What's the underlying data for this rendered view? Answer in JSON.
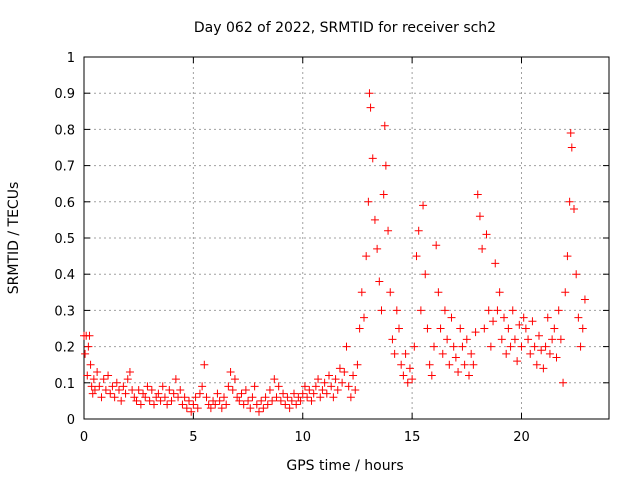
{
  "chart_data": {
    "type": "scatter",
    "title": "Day 062 of 2022, SRMTID for receiver sch2",
    "xlabel": "GPS time / hours",
    "ylabel": "SRMTID / TECUs",
    "xlim": [
      0,
      24
    ],
    "ylim": [
      0,
      1
    ],
    "xticks": [
      0,
      5,
      10,
      15,
      20
    ],
    "xtick_labels": [
      "0",
      "5",
      "10",
      "15",
      "20"
    ],
    "yticks": [
      0,
      0.1,
      0.2,
      0.3,
      0.4,
      0.5,
      0.6,
      0.7,
      0.8,
      0.9,
      1
    ],
    "ytick_labels": [
      "0",
      "0.1",
      "0.2",
      "0.3",
      "0.4",
      "0.5",
      "0.6",
      "0.7",
      "0.8",
      "0.9",
      "1"
    ],
    "grid": true,
    "marker": "+",
    "color": "#ff0000",
    "series": [
      {
        "name": "sch2 SRMTID",
        "points": [
          [
            0.0,
            0.23
          ],
          [
            0.05,
            0.18
          ],
          [
            0.1,
            0.23
          ],
          [
            0.15,
            0.12
          ],
          [
            0.2,
            0.2
          ],
          [
            0.25,
            0.23
          ],
          [
            0.3,
            0.15
          ],
          [
            0.35,
            0.09
          ],
          [
            0.4,
            0.07
          ],
          [
            0.45,
            0.11
          ],
          [
            0.5,
            0.08
          ],
          [
            0.6,
            0.13
          ],
          [
            0.7,
            0.09
          ],
          [
            0.8,
            0.06
          ],
          [
            0.9,
            0.11
          ],
          [
            1.0,
            0.08
          ],
          [
            1.1,
            0.12
          ],
          [
            1.2,
            0.07
          ],
          [
            1.3,
            0.09
          ],
          [
            1.4,
            0.06
          ],
          [
            1.5,
            0.1
          ],
          [
            1.6,
            0.08
          ],
          [
            1.7,
            0.05
          ],
          [
            1.8,
            0.09
          ],
          [
            1.9,
            0.07
          ],
          [
            2.0,
            0.11
          ],
          [
            2.1,
            0.13
          ],
          [
            2.2,
            0.08
          ],
          [
            2.3,
            0.06
          ],
          [
            2.4,
            0.05
          ],
          [
            2.5,
            0.08
          ],
          [
            2.6,
            0.04
          ],
          [
            2.7,
            0.07
          ],
          [
            2.8,
            0.06
          ],
          [
            2.9,
            0.09
          ],
          [
            3.0,
            0.05
          ],
          [
            3.1,
            0.08
          ],
          [
            3.2,
            0.04
          ],
          [
            3.3,
            0.06
          ],
          [
            3.4,
            0.07
          ],
          [
            3.5,
            0.05
          ],
          [
            3.6,
            0.09
          ],
          [
            3.7,
            0.06
          ],
          [
            3.8,
            0.04
          ],
          [
            3.9,
            0.08
          ],
          [
            4.0,
            0.05
          ],
          [
            4.1,
            0.07
          ],
          [
            4.2,
            0.11
          ],
          [
            4.3,
            0.06
          ],
          [
            4.4,
            0.08
          ],
          [
            4.5,
            0.04
          ],
          [
            4.6,
            0.06
          ],
          [
            4.7,
            0.03
          ],
          [
            4.8,
            0.05
          ],
          [
            4.9,
            0.02
          ],
          [
            5.0,
            0.04
          ],
          [
            5.1,
            0.06
          ],
          [
            5.2,
            0.03
          ],
          [
            5.3,
            0.07
          ],
          [
            5.4,
            0.09
          ],
          [
            5.5,
            0.15
          ],
          [
            5.6,
            0.06
          ],
          [
            5.7,
            0.04
          ],
          [
            5.8,
            0.03
          ],
          [
            5.9,
            0.05
          ],
          [
            6.0,
            0.04
          ],
          [
            6.1,
            0.07
          ],
          [
            6.2,
            0.05
          ],
          [
            6.3,
            0.03
          ],
          [
            6.4,
            0.06
          ],
          [
            6.5,
            0.04
          ],
          [
            6.6,
            0.09
          ],
          [
            6.7,
            0.13
          ],
          [
            6.8,
            0.08
          ],
          [
            6.9,
            0.11
          ],
          [
            7.0,
            0.06
          ],
          [
            7.1,
            0.05
          ],
          [
            7.2,
            0.07
          ],
          [
            7.3,
            0.04
          ],
          [
            7.4,
            0.08
          ],
          [
            7.5,
            0.05
          ],
          [
            7.6,
            0.03
          ],
          [
            7.7,
            0.06
          ],
          [
            7.8,
            0.09
          ],
          [
            7.9,
            0.04
          ],
          [
            8.0,
            0.02
          ],
          [
            8.1,
            0.05
          ],
          [
            8.2,
            0.03
          ],
          [
            8.3,
            0.06
          ],
          [
            8.4,
            0.04
          ],
          [
            8.5,
            0.08
          ],
          [
            8.6,
            0.05
          ],
          [
            8.7,
            0.11
          ],
          [
            8.8,
            0.06
          ],
          [
            8.9,
            0.09
          ],
          [
            9.0,
            0.05
          ],
          [
            9.1,
            0.07
          ],
          [
            9.2,
            0.04
          ],
          [
            9.3,
            0.06
          ],
          [
            9.4,
            0.03
          ],
          [
            9.5,
            0.05
          ],
          [
            9.6,
            0.07
          ],
          [
            9.7,
            0.04
          ],
          [
            9.8,
            0.06
          ],
          [
            9.9,
            0.05
          ],
          [
            10.0,
            0.07
          ],
          [
            10.1,
            0.09
          ],
          [
            10.2,
            0.06
          ],
          [
            10.3,
            0.08
          ],
          [
            10.4,
            0.05
          ],
          [
            10.5,
            0.07
          ],
          [
            10.6,
            0.09
          ],
          [
            10.7,
            0.11
          ],
          [
            10.8,
            0.06
          ],
          [
            10.9,
            0.08
          ],
          [
            11.0,
            0.1
          ],
          [
            11.1,
            0.07
          ],
          [
            11.2,
            0.12
          ],
          [
            11.3,
            0.09
          ],
          [
            11.4,
            0.06
          ],
          [
            11.5,
            0.11
          ],
          [
            11.6,
            0.08
          ],
          [
            11.7,
            0.14
          ],
          [
            11.8,
            0.1
          ],
          [
            11.9,
            0.13
          ],
          [
            12.0,
            0.2
          ],
          [
            12.1,
            0.09
          ],
          [
            12.2,
            0.06
          ],
          [
            12.3,
            0.12
          ],
          [
            12.4,
            0.08
          ],
          [
            12.5,
            0.15
          ],
          [
            12.6,
            0.25
          ],
          [
            12.7,
            0.35
          ],
          [
            12.8,
            0.28
          ],
          [
            12.9,
            0.45
          ],
          [
            13.0,
            0.6
          ],
          [
            13.05,
            0.9
          ],
          [
            13.1,
            0.86
          ],
          [
            13.2,
            0.72
          ],
          [
            13.3,
            0.55
          ],
          [
            13.4,
            0.47
          ],
          [
            13.5,
            0.38
          ],
          [
            13.6,
            0.3
          ],
          [
            13.7,
            0.62
          ],
          [
            13.75,
            0.81
          ],
          [
            13.8,
            0.7
          ],
          [
            13.9,
            0.52
          ],
          [
            14.0,
            0.35
          ],
          [
            14.1,
            0.22
          ],
          [
            14.2,
            0.18
          ],
          [
            14.3,
            0.3
          ],
          [
            14.4,
            0.25
          ],
          [
            14.5,
            0.15
          ],
          [
            14.6,
            0.12
          ],
          [
            14.7,
            0.18
          ],
          [
            14.8,
            0.1
          ],
          [
            14.9,
            0.14
          ],
          [
            15.0,
            0.11
          ],
          [
            15.1,
            0.2
          ],
          [
            15.2,
            0.45
          ],
          [
            15.3,
            0.52
          ],
          [
            15.4,
            0.3
          ],
          [
            15.5,
            0.59
          ],
          [
            15.6,
            0.4
          ],
          [
            15.7,
            0.25
          ],
          [
            15.8,
            0.15
          ],
          [
            15.9,
            0.12
          ],
          [
            16.0,
            0.2
          ],
          [
            16.1,
            0.48
          ],
          [
            16.2,
            0.35
          ],
          [
            16.3,
            0.25
          ],
          [
            16.4,
            0.18
          ],
          [
            16.5,
            0.3
          ],
          [
            16.6,
            0.22
          ],
          [
            16.7,
            0.15
          ],
          [
            16.8,
            0.28
          ],
          [
            16.9,
            0.2
          ],
          [
            17.0,
            0.17
          ],
          [
            17.1,
            0.13
          ],
          [
            17.2,
            0.25
          ],
          [
            17.3,
            0.2
          ],
          [
            17.4,
            0.15
          ],
          [
            17.5,
            0.22
          ],
          [
            17.6,
            0.12
          ],
          [
            17.7,
            0.18
          ],
          [
            17.8,
            0.15
          ],
          [
            17.9,
            0.24
          ],
          [
            18.0,
            0.62
          ],
          [
            18.1,
            0.56
          ],
          [
            18.2,
            0.47
          ],
          [
            18.3,
            0.25
          ],
          [
            18.4,
            0.51
          ],
          [
            18.5,
            0.3
          ],
          [
            18.6,
            0.2
          ],
          [
            18.7,
            0.27
          ],
          [
            18.8,
            0.43
          ],
          [
            18.9,
            0.3
          ],
          [
            19.0,
            0.35
          ],
          [
            19.1,
            0.22
          ],
          [
            19.2,
            0.28
          ],
          [
            19.3,
            0.18
          ],
          [
            19.4,
            0.25
          ],
          [
            19.5,
            0.2
          ],
          [
            19.6,
            0.3
          ],
          [
            19.7,
            0.22
          ],
          [
            19.8,
            0.16
          ],
          [
            19.9,
            0.26
          ],
          [
            20.0,
            0.2
          ],
          [
            20.1,
            0.28
          ],
          [
            20.2,
            0.25
          ],
          [
            20.3,
            0.22
          ],
          [
            20.4,
            0.18
          ],
          [
            20.5,
            0.27
          ],
          [
            20.6,
            0.2
          ],
          [
            20.7,
            0.15
          ],
          [
            20.8,
            0.23
          ],
          [
            20.9,
            0.19
          ],
          [
            21.0,
            0.14
          ],
          [
            21.1,
            0.2
          ],
          [
            21.2,
            0.28
          ],
          [
            21.3,
            0.18
          ],
          [
            21.4,
            0.22
          ],
          [
            21.5,
            0.25
          ],
          [
            21.6,
            0.17
          ],
          [
            21.7,
            0.3
          ],
          [
            21.8,
            0.22
          ],
          [
            21.9,
            0.1
          ],
          [
            22.0,
            0.35
          ],
          [
            22.1,
            0.45
          ],
          [
            22.2,
            0.6
          ],
          [
            22.25,
            0.79
          ],
          [
            22.3,
            0.75
          ],
          [
            22.4,
            0.58
          ],
          [
            22.5,
            0.4
          ],
          [
            22.6,
            0.28
          ],
          [
            22.7,
            0.2
          ],
          [
            22.8,
            0.25
          ],
          [
            22.9,
            0.33
          ]
        ]
      }
    ]
  }
}
